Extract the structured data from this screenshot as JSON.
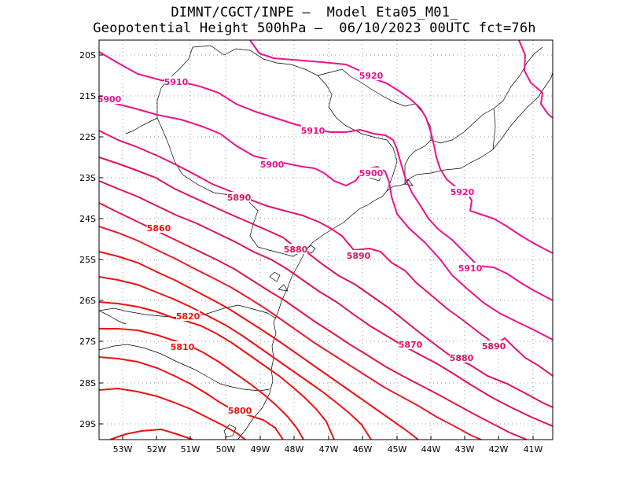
{
  "title": {
    "line1": "DIMNT/CGCT/INPE –  Model Eta05_M01_",
    "line2": "Geopotential Height 500hPa –  06/10/2023 00UTC fct=76h"
  },
  "axes": {
    "lon_ticks": [
      "53W",
      "52W",
      "51W",
      "50W",
      "49W",
      "48W",
      "47W",
      "46W",
      "45W",
      "44W",
      "43W",
      "42W",
      "41W"
    ],
    "lat_ticks": [
      "20S",
      "21S",
      "22S",
      "23S",
      "24S",
      "25S",
      "26S",
      "27S",
      "28S",
      "29S"
    ]
  },
  "colors": {
    "low": "#ee1111",
    "mid": "#e0105a",
    "high": "#f0108c",
    "coast": "#000000",
    "grid": "#999999"
  },
  "contour_labels": [
    {
      "text": "5920",
      "value": 5920
    },
    {
      "text": "5910",
      "value": 5910
    },
    {
      "text": "5900",
      "value": 5900
    },
    {
      "text": "5910",
      "value": 5910
    },
    {
      "text": "5900",
      "value": 5900
    },
    {
      "text": "5900",
      "value": 5900
    },
    {
      "text": "5920",
      "value": 5920
    },
    {
      "text": "5890",
      "value": 5890
    },
    {
      "text": "5860",
      "value": 5860
    },
    {
      "text": "5880",
      "value": 5880
    },
    {
      "text": "5890",
      "value": 5890
    },
    {
      "text": "5910",
      "value": 5910
    },
    {
      "text": "5820",
      "value": 5820
    },
    {
      "text": "5870",
      "value": 5870
    },
    {
      "text": "5890",
      "value": 5890
    },
    {
      "text": "5810",
      "value": 5810
    },
    {
      "text": "5880",
      "value": 5880
    },
    {
      "text": "5800",
      "value": 5800
    }
  ]
}
